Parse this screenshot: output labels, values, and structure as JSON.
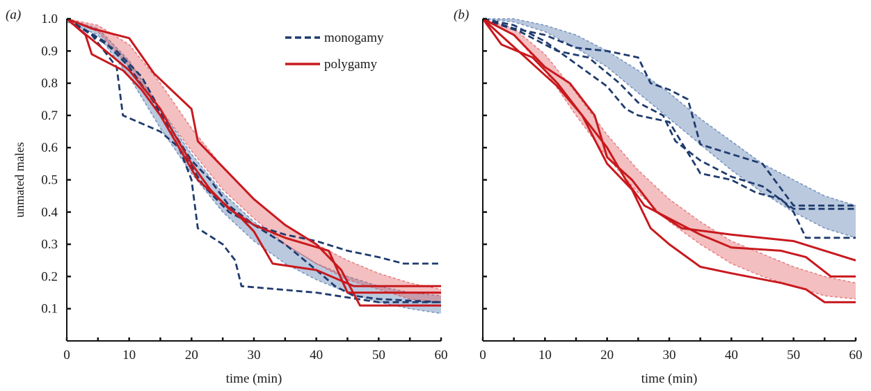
{
  "chart_data": [
    {
      "type": "line",
      "panel_label": "(a)",
      "xlabel": "time (min)",
      "ylabel": "unmated males",
      "xlim": [
        0,
        60
      ],
      "ylim": [
        0,
        1.0
      ],
      "x_ticks": [
        0,
        10,
        20,
        30,
        40,
        50,
        60
      ],
      "y_ticks": [
        0.1,
        0.2,
        0.3,
        0.4,
        0.5,
        0.6,
        0.7,
        0.8,
        0.9,
        1.0
      ],
      "show_y_tick_labels": true,
      "grid": false,
      "legend": {
        "placement": "top-center",
        "entries": [
          {
            "name": "monogamy",
            "style": "dashed",
            "color": "#1f3b6e"
          },
          {
            "name": "polygamy",
            "style": "solid",
            "color": "#c8191e"
          }
        ]
      },
      "bands": [
        {
          "group": "monogamy",
          "color": "#4a72a8",
          "x": [
            0,
            5,
            10,
            15,
            20,
            25,
            30,
            35,
            40,
            45,
            50,
            55,
            60
          ],
          "upper": [
            1.0,
            0.97,
            0.87,
            0.72,
            0.58,
            0.46,
            0.37,
            0.3,
            0.24,
            0.2,
            0.17,
            0.15,
            0.14
          ],
          "lower": [
            0.99,
            0.95,
            0.82,
            0.66,
            0.52,
            0.4,
            0.31,
            0.24,
            0.19,
            0.15,
            0.12,
            0.1,
            0.085
          ]
        },
        {
          "group": "polygamy",
          "color": "#e0565a",
          "x": [
            0,
            5,
            10,
            15,
            20,
            25,
            30,
            35,
            40,
            45,
            50,
            55,
            60
          ],
          "upper": [
            1.0,
            0.98,
            0.92,
            0.8,
            0.66,
            0.54,
            0.44,
            0.36,
            0.3,
            0.25,
            0.21,
            0.18,
            0.16
          ],
          "lower": [
            1.0,
            0.96,
            0.85,
            0.72,
            0.59,
            0.47,
            0.38,
            0.3,
            0.24,
            0.19,
            0.16,
            0.13,
            0.12
          ]
        }
      ],
      "series": [
        {
          "group": "monogamy",
          "style": "dashed",
          "color": "#1f3b6e",
          "x": [
            0,
            4,
            6,
            8,
            9,
            15,
            18,
            20,
            21,
            25,
            27,
            28,
            40,
            50,
            60
          ],
          "y": [
            1.0,
            0.95,
            0.9,
            0.85,
            0.7,
            0.65,
            0.6,
            0.5,
            0.35,
            0.3,
            0.25,
            0.17,
            0.15,
            0.12,
            0.12
          ]
        },
        {
          "group": "monogamy",
          "style": "dashed",
          "color": "#1f3b6e",
          "x": [
            0,
            6,
            10,
            14,
            18,
            22,
            26,
            30,
            35,
            40,
            45,
            50,
            54,
            60
          ],
          "y": [
            1.0,
            0.93,
            0.85,
            0.74,
            0.6,
            0.48,
            0.4,
            0.36,
            0.33,
            0.31,
            0.28,
            0.26,
            0.24,
            0.24
          ]
        },
        {
          "group": "monogamy",
          "style": "dashed",
          "color": "#1f3b6e",
          "x": [
            0,
            8,
            12,
            16,
            20,
            23,
            26,
            30,
            35,
            40,
            43,
            46,
            50,
            60
          ],
          "y": [
            1.0,
            0.9,
            0.82,
            0.68,
            0.56,
            0.5,
            0.42,
            0.36,
            0.3,
            0.22,
            0.17,
            0.14,
            0.13,
            0.12
          ]
        },
        {
          "group": "polygamy",
          "style": "solid",
          "color": "#c8191e",
          "x": [
            0,
            4,
            10,
            14,
            20,
            21,
            26,
            30,
            35,
            40,
            44,
            47,
            60
          ],
          "y": [
            1.0,
            0.97,
            0.94,
            0.83,
            0.72,
            0.62,
            0.52,
            0.44,
            0.36,
            0.3,
            0.22,
            0.11,
            0.11
          ]
        },
        {
          "group": "polygamy",
          "style": "solid",
          "color": "#c8191e",
          "x": [
            0,
            3,
            4,
            9,
            12,
            15,
            18,
            21,
            25,
            28,
            30,
            33,
            40,
            46,
            60
          ],
          "y": [
            1.0,
            0.95,
            0.89,
            0.84,
            0.78,
            0.7,
            0.6,
            0.5,
            0.43,
            0.38,
            0.34,
            0.24,
            0.22,
            0.17,
            0.17
          ]
        },
        {
          "group": "polygamy",
          "style": "solid",
          "color": "#c8191e",
          "x": [
            0,
            5,
            10,
            15,
            17,
            20,
            23,
            26,
            30,
            35,
            42,
            45,
            60
          ],
          "y": [
            1.0,
            0.92,
            0.84,
            0.72,
            0.65,
            0.55,
            0.47,
            0.41,
            0.36,
            0.32,
            0.28,
            0.15,
            0.15
          ]
        }
      ]
    },
    {
      "type": "line",
      "panel_label": "(b)",
      "xlabel": "time (min)",
      "ylabel": "",
      "xlim": [
        0,
        60
      ],
      "ylim": [
        0,
        1.0
      ],
      "x_ticks": [
        0,
        10,
        20,
        30,
        40,
        50,
        60
      ],
      "y_ticks": [
        0.1,
        0.2,
        0.3,
        0.4,
        0.5,
        0.6,
        0.7,
        0.8,
        0.9,
        1.0
      ],
      "show_y_tick_labels": false,
      "grid": false,
      "legend": null,
      "bands": [
        {
          "group": "monogamy",
          "color": "#4a72a8",
          "x": [
            0,
            5,
            10,
            15,
            20,
            25,
            30,
            35,
            40,
            45,
            50,
            55,
            60
          ],
          "upper": [
            1.0,
            1.0,
            0.98,
            0.95,
            0.9,
            0.84,
            0.77,
            0.69,
            0.62,
            0.55,
            0.5,
            0.45,
            0.42
          ],
          "lower": [
            1.0,
            0.99,
            0.96,
            0.91,
            0.85,
            0.77,
            0.69,
            0.61,
            0.53,
            0.46,
            0.4,
            0.35,
            0.32
          ]
        },
        {
          "group": "polygamy",
          "color": "#e0565a",
          "x": [
            0,
            5,
            10,
            15,
            20,
            25,
            30,
            35,
            40,
            45,
            50,
            55,
            60
          ],
          "upper": [
            1.0,
            0.97,
            0.89,
            0.77,
            0.64,
            0.53,
            0.44,
            0.37,
            0.31,
            0.27,
            0.23,
            0.2,
            0.18
          ],
          "lower": [
            1.0,
            0.95,
            0.84,
            0.7,
            0.57,
            0.46,
            0.37,
            0.3,
            0.24,
            0.2,
            0.17,
            0.14,
            0.13
          ]
        }
      ],
      "series": [
        {
          "group": "monogamy",
          "style": "dashed",
          "color": "#1f3b6e",
          "x": [
            0,
            5,
            10,
            15,
            20,
            25,
            27,
            30,
            33,
            35,
            40,
            45,
            50,
            60
          ],
          "y": [
            1.0,
            0.97,
            0.95,
            0.91,
            0.9,
            0.88,
            0.8,
            0.78,
            0.75,
            0.61,
            0.58,
            0.55,
            0.42,
            0.42
          ]
        },
        {
          "group": "monogamy",
          "style": "dashed",
          "color": "#1f3b6e",
          "x": [
            0,
            6,
            12,
            17,
            22,
            25,
            29,
            31,
            35,
            40,
            45,
            50,
            52,
            60
          ],
          "y": [
            1.0,
            0.96,
            0.9,
            0.88,
            0.8,
            0.74,
            0.7,
            0.62,
            0.56,
            0.51,
            0.48,
            0.41,
            0.41,
            0.41
          ]
        },
        {
          "group": "monogamy",
          "style": "dashed",
          "color": "#1f3b6e",
          "x": [
            0,
            5,
            10,
            15,
            20,
            23,
            25,
            30,
            35,
            40,
            44,
            48,
            50,
            52,
            60
          ],
          "y": [
            1.0,
            0.98,
            0.93,
            0.86,
            0.79,
            0.72,
            0.7,
            0.68,
            0.52,
            0.5,
            0.46,
            0.44,
            0.4,
            0.32,
            0.32
          ]
        },
        {
          "group": "polygamy",
          "style": "solid",
          "color": "#c8191e",
          "x": [
            0,
            5,
            10,
            14,
            18,
            20,
            24,
            28,
            32,
            40,
            50,
            60
          ],
          "y": [
            1.0,
            0.95,
            0.85,
            0.8,
            0.7,
            0.57,
            0.5,
            0.4,
            0.35,
            0.33,
            0.31,
            0.25
          ]
        },
        {
          "group": "polygamy",
          "style": "solid",
          "color": "#c8191e",
          "x": [
            0,
            4,
            8,
            12,
            16,
            20,
            23,
            26,
            30,
            35,
            40,
            48,
            52,
            56,
            60
          ],
          "y": [
            1.0,
            0.93,
            0.86,
            0.79,
            0.7,
            0.6,
            0.5,
            0.42,
            0.38,
            0.33,
            0.29,
            0.28,
            0.26,
            0.2,
            0.2
          ]
        },
        {
          "group": "polygamy",
          "style": "solid",
          "color": "#c8191e",
          "x": [
            0,
            3,
            8,
            12,
            16,
            20,
            24,
            27,
            30,
            35,
            40,
            48,
            52,
            55,
            60
          ],
          "y": [
            1.0,
            0.92,
            0.88,
            0.8,
            0.7,
            0.55,
            0.47,
            0.35,
            0.3,
            0.23,
            0.21,
            0.18,
            0.16,
            0.12,
            0.12
          ]
        }
      ]
    }
  ]
}
